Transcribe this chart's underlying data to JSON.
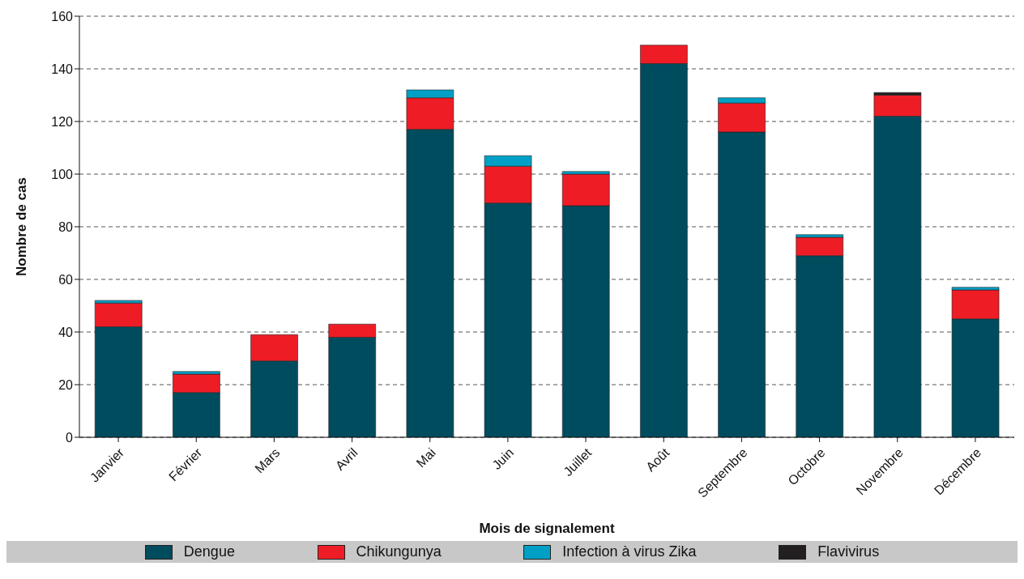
{
  "chart_data": {
    "type": "bar",
    "stacked": true,
    "xlabel": "Mois de signalement",
    "ylabel": "Nombre de cas",
    "categories": [
      "Janvier",
      "Février",
      "Mars",
      "Avril",
      "Mai",
      "Juin",
      "Juillet",
      "Août",
      "Septembre",
      "Octobre",
      "Novembre",
      "Décembre"
    ],
    "series": [
      {
        "name": "Dengue",
        "color": "#004c5f",
        "values": [
          42,
          17,
          29,
          38,
          117,
          89,
          88,
          142,
          116,
          69,
          122,
          45
        ]
      },
      {
        "name": "Chikungunya",
        "color": "#ee1c25",
        "values": [
          9,
          7,
          10,
          5,
          12,
          14,
          12,
          7,
          11,
          7,
          8,
          11
        ]
      },
      {
        "name": "Infection à virus Zika",
        "color": "#00a0c6",
        "values": [
          1,
          1,
          null,
          null,
          3,
          4,
          1,
          null,
          2,
          1,
          null,
          1
        ]
      },
      {
        "name": "Flavivirus",
        "color": "#231f20",
        "values": [
          null,
          null,
          null,
          null,
          null,
          null,
          null,
          null,
          null,
          null,
          1,
          null
        ]
      }
    ],
    "ylim": [
      0,
      160
    ],
    "yticks": [
      0,
      20,
      40,
      60,
      80,
      100,
      120,
      140,
      160
    ],
    "grid": "y",
    "legend": "bottom"
  }
}
